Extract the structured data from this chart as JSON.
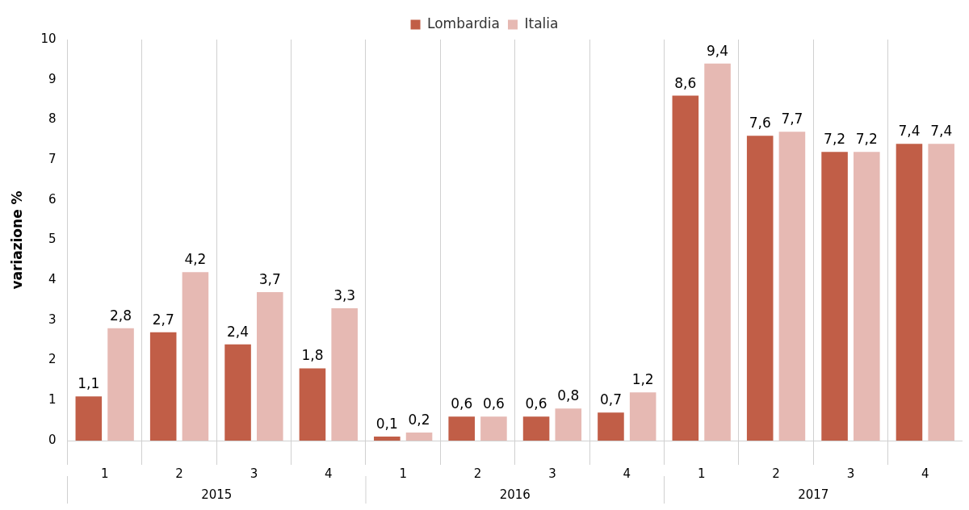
{
  "chart_data": {
    "type": "bar",
    "ylabel": "variazione %",
    "categories": [
      "1",
      "2",
      "3",
      "4",
      "1",
      "2",
      "3",
      "4",
      "1",
      "2",
      "3",
      "4"
    ],
    "annotations": [
      "2015",
      "2016",
      "2017"
    ],
    "series": [
      {
        "name": "Lombardia",
        "color": "#c15e47",
        "values": [
          1.1,
          2.7,
          2.4,
          1.8,
          0.1,
          0.6,
          0.6,
          0.7,
          8.6,
          7.6,
          7.2,
          7.4
        ],
        "value_labels": [
          "1,1",
          "2,7",
          "2,4",
          "1,8",
          "0,1",
          "0,6",
          "0,6",
          "0,7",
          "8,6",
          "7,6",
          "7,2",
          "7,4"
        ]
      },
      {
        "name": "Italia",
        "color": "#e6b9b3",
        "values": [
          2.8,
          4.2,
          3.7,
          3.3,
          0.2,
          0.6,
          0.8,
          1.2,
          9.4,
          7.7,
          7.2,
          7.4
        ],
        "value_labels": [
          "2,8",
          "4,2",
          "3,7",
          "3,3",
          "0,2",
          "0,6",
          "0,8",
          "1,2",
          "9,4",
          "7,7",
          "7,2",
          "7,4"
        ]
      }
    ],
    "ylim": [
      0,
      10
    ],
    "yticks": [
      0,
      1,
      2,
      3,
      4,
      5,
      6,
      7,
      8,
      9,
      10
    ],
    "grid": "x",
    "legend": "top"
  }
}
